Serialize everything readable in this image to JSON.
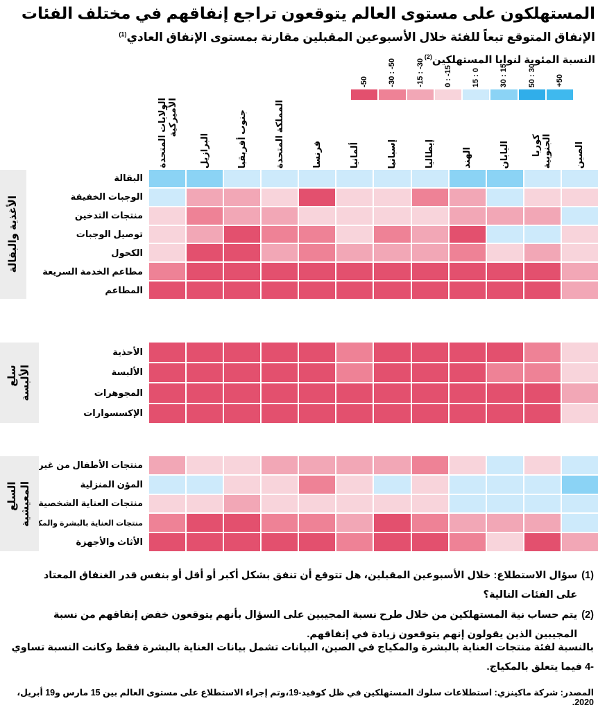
{
  "title": "المستهلكون على مستوى العالم يتوقعون تراجع إنفاقهم في مختلف الفئات",
  "subtitle": "الإنفاق المتوقع تبعاً للفئة خلال الأسبوعين المقبلين مقارنة بمستوى الإنفاق العادي",
  "subtitle_sup": "(1)",
  "unit_label": "النسبة المئوية لنوايا المستهلكين",
  "unit_sup": "(2)",
  "footnotes": [
    {
      "marker": "(1)",
      "text": "سؤال الاستطلاع: خلال الأسبوعين المقبلين، هل تتوقع أن تنفق بشكل أكبر أو أقل أو بنفس قدر الغنفاق المعتاد على الفئات التالية؟"
    },
    {
      "marker": "(2)",
      "text": "يتم حساب نية المستهلكين من خلال طرح نسبة المجيبين على السؤال بأنهم يتوقعون خفض إنفاقهم من نسبة المجيبين الذين يقولون إنهم يتوقعون زيادة في إنفاقهم."
    }
  ],
  "note": "بالنسبة لفئة منتجات العناية بالبشرة والمكياج في الصين، البيانات تشمل بيانات العناية بالبشرة فقط وكانت النسبة تساوي -4 فيما يتعلق بالمكياج.",
  "source": "المصدر: شركة ماكينزي: استطلاعات سلوك المستهلكين في ظل كوفيد-19،وتم إجراء الاستطلاع على مستوى العالم بين 15 مارس و19 أبريل، 2020.",
  "chart_data": {
    "type": "heatmap",
    "title": "الإنفاق المتوقع تبعاً للفئة خلال الأسبوعين المقبلين مقارنة بمستوى الإنفاق العادي (النسبة المئوية لنوايا المستهلكين)",
    "legend_buckets": [
      {
        "key": "r4",
        "label": "-50",
        "color": "#e3506e"
      },
      {
        "key": "r3",
        "label": "-30 : -50",
        "color": "#ee8296"
      },
      {
        "key": "r2",
        "label": "-15 : -30",
        "color": "#f2a7b6"
      },
      {
        "key": "r1",
        "label": "0 : -15",
        "color": "#f8d4db"
      },
      {
        "key": "b1",
        "label": "15 : 0",
        "color": "#cdeafb"
      },
      {
        "key": "b2",
        "label": "30 : 15",
        "color": "#8bd3f5"
      },
      {
        "key": "b3",
        "label": "50 : 30",
        "color": "#30aeea"
      },
      {
        "key": "b4",
        "label": "+50",
        "color": "#3fb9ee"
      }
    ],
    "columns": [
      [
        "الولايات المتحدة",
        "الأميركية"
      ],
      [
        "البرازيل"
      ],
      [
        "جنوب أفريقيا"
      ],
      [
        "المملكة المتحدة"
      ],
      [
        "فرنسا"
      ],
      [
        "ألمانيا"
      ],
      [
        "إسبانيا"
      ],
      [
        "إيطاليا"
      ],
      [
        "الهند"
      ],
      [
        "اليابان"
      ],
      [
        "كوريا",
        "الجنوبية"
      ],
      [
        "الصين"
      ]
    ],
    "groups": [
      {
        "name_lines": [
          "الأغذية والبقالة"
        ],
        "rows": [
          {
            "label": "البقالة",
            "cells": [
              "b2",
              "b2",
              "b1",
              "b1",
              "b1",
              "b1",
              "b1",
              "b1",
              "b2",
              "b2",
              "b1",
              "b1"
            ]
          },
          {
            "label": "الوجبات الخفيفة",
            "cells": [
              "b1",
              "r2",
              "r2",
              "r1",
              "r4",
              "r1",
              "r1",
              "r3",
              "r2",
              "b1",
              "r1",
              "r1"
            ]
          },
          {
            "label": "منتجات التدخين",
            "cells": [
              "r1",
              "r3",
              "r2",
              "r2",
              "r1",
              "r1",
              "r1",
              "r1",
              "r2",
              "r2",
              "r2",
              "b1"
            ]
          },
          {
            "label": "توصيل الوجبات",
            "cells": [
              "r1",
              "r2",
              "r4",
              "r3",
              "r3",
              "r1",
              "r3",
              "r2",
              "r4",
              "b1",
              "b1",
              "r1"
            ]
          },
          {
            "label": "الكحول",
            "cells": [
              "r1",
              "r4",
              "r4",
              "r2",
              "r3",
              "r2",
              "r2",
              "r2",
              "r3",
              "r1",
              "r2",
              "r1"
            ]
          },
          {
            "label": "مطاعم الخدمة السريعة",
            "cells": [
              "r3",
              "r4",
              "r4",
              "r4",
              "r4",
              "r4",
              "r4",
              "r4",
              "r4",
              "r4",
              "r4",
              "r2"
            ]
          },
          {
            "label": "المطاعم",
            "cells": [
              "r4",
              "r4",
              "r4",
              "r4",
              "r4",
              "r4",
              "r4",
              "r4",
              "r4",
              "r4",
              "r4",
              "r2"
            ]
          }
        ]
      },
      {
        "name_lines": [
          "سلع",
          "الألبسة"
        ],
        "rows": [
          {
            "label": "الأحذية",
            "cells": [
              "r4",
              "r4",
              "r4",
              "r4",
              "r4",
              "r3",
              "r4",
              "r4",
              "r4",
              "r4",
              "r3",
              "r1"
            ]
          },
          {
            "label": "الألبسة",
            "cells": [
              "r4",
              "r4",
              "r4",
              "r4",
              "r4",
              "r3",
              "r4",
              "r4",
              "r4",
              "r3",
              "r3",
              "r1"
            ]
          },
          {
            "label": "المجوهرات",
            "cells": [
              "r4",
              "r4",
              "r4",
              "r4",
              "r4",
              "r4",
              "r4",
              "r4",
              "r4",
              "r4",
              "r4",
              "r2"
            ]
          },
          {
            "label": "الإكسسوارات",
            "cells": [
              "r4",
              "r4",
              "r4",
              "r4",
              "r4",
              "r4",
              "r4",
              "r4",
              "r4",
              "r4",
              "r4",
              "r1"
            ]
          }
        ]
      },
      {
        "name_lines": [
          "السلع",
          "المعيشية"
        ],
        "rows": [
          {
            "label": "منتجات الأطفال من غير الغذاء",
            "cells": [
              "r2",
              "r1",
              "r1",
              "r2",
              "r2",
              "r2",
              "r2",
              "r3",
              "r1",
              "b1",
              "r1",
              "b1"
            ]
          },
          {
            "label": "المؤن المنزلية",
            "cells": [
              "b1",
              "b1",
              "r1",
              "r1",
              "r3",
              "r1",
              "b1",
              "r1",
              "b1",
              "b1",
              "b1",
              "b2"
            ]
          },
          {
            "label": "منتجات العناية الشخصية",
            "mark": ":",
            "cells": [
              "r1",
              "r1",
              "r2",
              "r1",
              "r1",
              "r1",
              "r1",
              "r1",
              "b1",
              "b1",
              "b1",
              "b1"
            ]
          },
          {
            "label": "منتجات العناية بالبشرة والمكياج",
            "mark": ":",
            "cells": [
              "r3",
              "r4",
              "r4",
              "r3",
              "r3",
              "r2",
              "r4",
              "r3",
              "r2",
              "r2",
              "r2",
              "b1"
            ]
          },
          {
            "label": "الأثاث والأجهزة",
            "cells": [
              "r4",
              "r4",
              "r4",
              "r4",
              "r4",
              "r3",
              "r4",
              "r4",
              "r3",
              "r1",
              "r4",
              "r2"
            ]
          }
        ]
      }
    ]
  }
}
